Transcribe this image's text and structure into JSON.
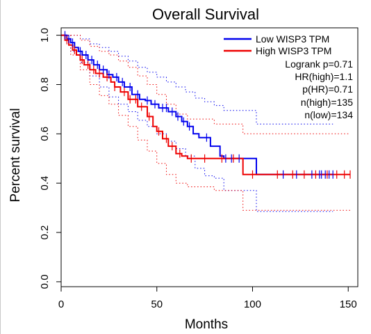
{
  "chart_data": {
    "type": "line",
    "title": "Overall Survival",
    "xlabel": "Months",
    "ylabel": "Percent survival",
    "xlim": [
      0,
      155
    ],
    "ylim": [
      -0.02,
      1.03
    ],
    "x_ticks": [
      0,
      50,
      100,
      150
    ],
    "x_tick_labels": [
      "0",
      "50",
      "100",
      "150"
    ],
    "y_ticks": [
      0.0,
      0.2,
      0.4,
      0.6,
      0.8,
      1.0
    ],
    "y_tick_labels": [
      "0.0",
      "0.2",
      "0.4",
      "0.6",
      "0.8",
      "1.0"
    ],
    "grid": false,
    "legend_position": "top-right",
    "legend": [
      "Low WISP3 TPM",
      "High WISP3 TPM"
    ],
    "annotations": [
      "Logrank p=0.71",
      "HR(high)=1.1",
      "p(HR)=0.71",
      "n(high)=135",
      "n(low)=134"
    ],
    "series": [
      {
        "name": "Low WISP3 TPM",
        "color": "#0000ee",
        "style": "step",
        "x": [
          0,
          3,
          5,
          7,
          9,
          11,
          14,
          17,
          20,
          24,
          27,
          30,
          33,
          37,
          41,
          44,
          47,
          51,
          56,
          60,
          63,
          66,
          69,
          72,
          78,
          83,
          85,
          102,
          142
        ],
        "y": [
          1.0,
          0.985,
          0.97,
          0.95,
          0.935,
          0.92,
          0.9,
          0.88,
          0.86,
          0.84,
          0.83,
          0.81,
          0.79,
          0.76,
          0.74,
          0.735,
          0.72,
          0.705,
          0.69,
          0.67,
          0.65,
          0.63,
          0.6,
          0.585,
          0.55,
          0.51,
          0.5,
          0.435,
          0.435
        ],
        "censor_x": [
          2,
          4,
          6,
          10,
          13,
          16,
          19,
          22,
          25,
          29,
          32,
          36,
          40,
          45,
          49,
          53,
          55,
          58,
          61,
          64,
          67,
          76,
          86,
          89,
          93,
          116,
          123,
          131,
          135,
          136,
          138,
          140,
          142
        ],
        "ci_upper": {
          "x": [
            0,
            5,
            10,
            15,
            20,
            25,
            30,
            35,
            40,
            45,
            50,
            55,
            60,
            65,
            70,
            75,
            80,
            85,
            102,
            142
          ],
          "y": [
            1.0,
            1.0,
            0.985,
            0.965,
            0.95,
            0.935,
            0.915,
            0.895,
            0.87,
            0.85,
            0.83,
            0.81,
            0.79,
            0.77,
            0.745,
            0.73,
            0.715,
            0.695,
            0.64,
            0.64
          ]
        },
        "ci_lower": {
          "x": [
            0,
            5,
            10,
            15,
            20,
            25,
            30,
            35,
            40,
            45,
            50,
            55,
            60,
            65,
            70,
            75,
            80,
            85,
            102,
            142
          ],
          "y": [
            1.0,
            0.935,
            0.89,
            0.835,
            0.79,
            0.75,
            0.72,
            0.69,
            0.655,
            0.63,
            0.6,
            0.57,
            0.54,
            0.51,
            0.46,
            0.43,
            0.42,
            0.37,
            0.285,
            0.285
          ]
        }
      },
      {
        "name": "High WISP3 TPM",
        "color": "#ee0000",
        "style": "step",
        "x": [
          0,
          2,
          4,
          6,
          8,
          10,
          12,
          15,
          18,
          22,
          26,
          28,
          31,
          35,
          40,
          45,
          48,
          50,
          53,
          56,
          60,
          63,
          66,
          95,
          151
        ],
        "y": [
          1.0,
          0.98,
          0.96,
          0.94,
          0.92,
          0.9,
          0.88,
          0.86,
          0.845,
          0.83,
          0.81,
          0.79,
          0.77,
          0.74,
          0.71,
          0.67,
          0.63,
          0.61,
          0.58,
          0.55,
          0.52,
          0.51,
          0.5,
          0.435,
          0.435
        ],
        "censor_x": [
          3,
          7,
          11,
          14,
          17,
          20,
          24,
          28,
          33,
          36,
          39,
          42,
          46,
          51,
          55,
          58,
          62,
          68,
          75,
          84,
          90,
          100,
          113,
          121,
          127,
          133,
          139,
          144,
          148,
          151
        ],
        "ci_upper": {
          "x": [
            0,
            5,
            10,
            15,
            20,
            25,
            30,
            35,
            40,
            45,
            50,
            55,
            60,
            66,
            80,
            95,
            151
          ],
          "y": [
            1.0,
            1.0,
            0.98,
            0.955,
            0.935,
            0.92,
            0.895,
            0.87,
            0.835,
            0.8,
            0.76,
            0.72,
            0.68,
            0.66,
            0.64,
            0.6,
            0.6
          ]
        },
        "ci_lower": {
          "x": [
            0,
            5,
            10,
            15,
            20,
            25,
            30,
            35,
            40,
            45,
            50,
            55,
            60,
            66,
            80,
            95,
            151
          ],
          "y": [
            1.0,
            0.92,
            0.86,
            0.8,
            0.755,
            0.72,
            0.675,
            0.63,
            0.575,
            0.53,
            0.48,
            0.435,
            0.4,
            0.385,
            0.37,
            0.29,
            0.29
          ]
        }
      }
    ]
  }
}
